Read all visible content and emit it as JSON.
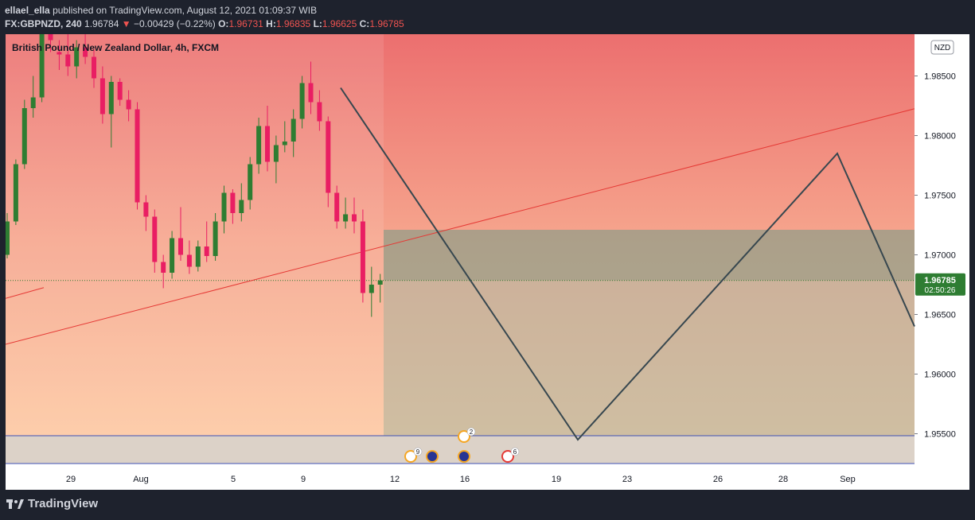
{
  "header": {
    "publisher": "ellael_ella",
    "published_text": "published on TradingView.com, August 12, 2021 01:09:37 WIB",
    "symbol": "FX:GBPNZD, 240",
    "last": "1.96784",
    "arrow": "▼",
    "change": "−0.00429 (−0.22%)",
    "o_label": "O:",
    "o_value": "1.96731",
    "h_label": "H:",
    "h_value": "1.96835",
    "l_label": "L:",
    "l_value": "1.96625",
    "c_label": "C:",
    "c_value": "1.96785"
  },
  "chart_data": {
    "type": "candlestick",
    "title": "British Pound / New Zealand Dollar, 4h, FXCM",
    "currency_badge": "NZD",
    "y_ticks": [
      "1.98500",
      "1.98000",
      "1.97500",
      "1.97000",
      "1.96500",
      "1.96000",
      "1.95500"
    ],
    "ylim": [
      1.9525,
      1.9885
    ],
    "x_ticks": [
      "29",
      "Aug",
      "5",
      "9",
      "12",
      "16",
      "19",
      "23",
      "26",
      "28",
      "Sep"
    ],
    "last_price": 1.96785,
    "last_price_label": "1.96785",
    "countdown": "02:50:26",
    "candles": [
      [
        1.97,
        1.9735,
        1.9697,
        1.9728
      ],
      [
        1.9728,
        1.978,
        1.9725,
        1.9776
      ],
      [
        1.9776,
        1.983,
        1.9772,
        1.9823
      ],
      [
        1.9823,
        1.985,
        1.9815,
        1.9832
      ],
      [
        1.9832,
        1.989,
        1.9828,
        1.9885
      ],
      [
        1.9885,
        1.9895,
        1.987,
        1.988
      ],
      [
        1.987,
        1.988,
        1.9855,
        1.9868
      ],
      [
        1.9868,
        1.9885,
        1.985,
        1.9858
      ],
      [
        1.9858,
        1.988,
        1.9848,
        1.9874
      ],
      [
        1.9874,
        1.9892,
        1.986,
        1.9866
      ],
      [
        1.9866,
        1.9872,
        1.984,
        1.9848
      ],
      [
        1.9848,
        1.9858,
        1.981,
        1.9818
      ],
      [
        1.9818,
        1.985,
        1.979,
        1.9845
      ],
      [
        1.9845,
        1.9848,
        1.9825,
        1.983
      ],
      [
        1.983,
        1.9838,
        1.9812,
        1.9822
      ],
      [
        1.9822,
        1.9828,
        1.9738,
        1.9744
      ],
      [
        1.9744,
        1.975,
        1.972,
        1.9732
      ],
      [
        1.9732,
        1.9738,
        1.9685,
        1.9694
      ],
      [
        1.9694,
        1.97,
        1.9672,
        1.9685
      ],
      [
        1.9685,
        1.972,
        1.968,
        1.9714
      ],
      [
        1.9714,
        1.974,
        1.9695,
        1.97
      ],
      [
        1.97,
        1.9712,
        1.9684,
        1.969
      ],
      [
        1.969,
        1.9712,
        1.9686,
        1.9707
      ],
      [
        1.9707,
        1.9728,
        1.9694,
        1.9699
      ],
      [
        1.9699,
        1.9735,
        1.9695,
        1.9728
      ],
      [
        1.9728,
        1.9758,
        1.9718,
        1.9752
      ],
      [
        1.9752,
        1.9755,
        1.9726,
        1.9735
      ],
      [
        1.9735,
        1.976,
        1.9728,
        1.9746
      ],
      [
        1.9746,
        1.9782,
        1.9738,
        1.9776
      ],
      [
        1.9776,
        1.9815,
        1.9768,
        1.9808
      ],
      [
        1.9808,
        1.9825,
        1.977,
        1.9778
      ],
      [
        1.9778,
        1.98,
        1.976,
        1.9792
      ],
      [
        1.9792,
        1.9812,
        1.9786,
        1.9795
      ],
      [
        1.9795,
        1.9822,
        1.9782,
        1.9814
      ],
      [
        1.9814,
        1.985,
        1.9806,
        1.9844
      ],
      [
        1.9844,
        1.9862,
        1.9818,
        1.9828
      ],
      [
        1.9828,
        1.9838,
        1.9804,
        1.9812
      ],
      [
        1.9812,
        1.9816,
        1.974,
        1.9752
      ],
      [
        1.9752,
        1.9758,
        1.9722,
        1.9728
      ],
      [
        1.9728,
        1.9748,
        1.9722,
        1.9734
      ],
      [
        1.9734,
        1.9748,
        1.9718,
        1.9728
      ],
      [
        1.9728,
        1.9738,
        1.966,
        1.9668
      ],
      [
        1.9668,
        1.969,
        1.9648,
        1.9675
      ],
      [
        1.9675,
        1.9684,
        1.966,
        1.96785
      ]
    ],
    "annotations": {
      "trend_line": "red ascending line",
      "target_zone": [
        1.9545,
        1.9721
      ],
      "stop_zone_top": 1.9721,
      "projection_path": [
        1.984,
        1.9545,
        1.9785,
        1.964
      ]
    },
    "event_markers": [
      {
        "count": "9"
      },
      {
        "count": ""
      },
      {
        "count": "2"
      },
      {
        "count": ""
      },
      {
        "count": "6"
      }
    ]
  },
  "footer": {
    "brand": "TradingView"
  },
  "colors": {
    "up": "#2e7d32",
    "down": "#e91e63",
    "trend": "#e53935",
    "path": "#37474f",
    "background": "#1e222d"
  }
}
